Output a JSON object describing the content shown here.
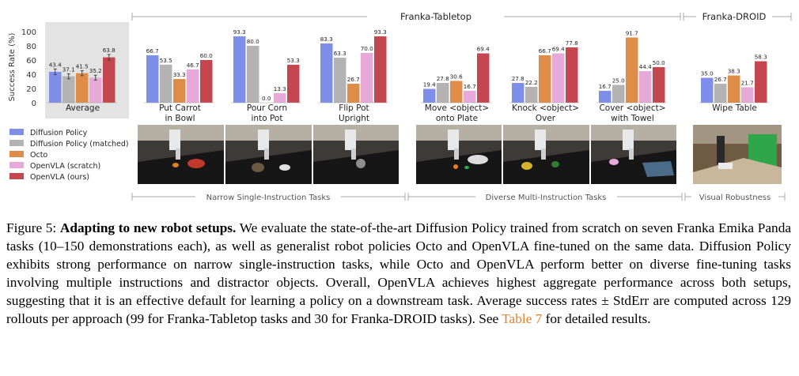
{
  "colors": {
    "Diffusion Policy": "#7f8ee8",
    "Diffusion Policy (matched)": "#b3b3b3",
    "Octo": "#dd8d48",
    "OpenVLA (scratch)": "#e6a9d8",
    "OpenVLA (ours)": "#c4464f"
  },
  "group_labels": {
    "tabletop": "Franka-Tabletop",
    "droid": "Franka-DROID",
    "narrow": "Narrow Single-Instruction Tasks",
    "diverse": "Diverse Multi-Instruction Tasks",
    "visual": "Visual Robustness"
  },
  "chart_data": {
    "type": "bar",
    "ylabel": "Success Rate (%)",
    "ylim": [
      0,
      100
    ],
    "yticks": [
      0,
      20,
      40,
      60,
      80,
      100
    ],
    "series_names": [
      "Diffusion Policy",
      "Diffusion Policy (matched)",
      "Octo",
      "OpenVLA (scratch)",
      "OpenVLA (ours)"
    ],
    "panels": [
      {
        "label": [
          "Average"
        ],
        "values": [
          43.4,
          37.1,
          41.5,
          35.2,
          63.8
        ],
        "errors": [
          4.0,
          3.5,
          3.5,
          3.5,
          4.0
        ]
      },
      {
        "label": [
          "Put Carrot",
          "in Bowl"
        ],
        "values": [
          66.7,
          53.5,
          33.3,
          46.7,
          60.0
        ]
      },
      {
        "label": [
          "Pour Corn",
          "into Pot"
        ],
        "values": [
          93.3,
          80.0,
          0.0,
          13.3,
          53.3
        ]
      },
      {
        "label": [
          "Flip Pot",
          "Upright"
        ],
        "values": [
          83.3,
          63.3,
          26.7,
          70.0,
          93.3
        ]
      },
      {
        "label": [
          "Move <object>",
          "onto Plate"
        ],
        "values": [
          19.4,
          27.8,
          30.6,
          16.7,
          69.4
        ]
      },
      {
        "label": [
          "Knock <object>",
          "Over"
        ],
        "values": [
          27.8,
          22.2,
          66.7,
          69.4,
          77.8
        ]
      },
      {
        "label": [
          "Cover <object>",
          "with Towel"
        ],
        "values": [
          16.7,
          25.0,
          91.7,
          44.4,
          50.0
        ]
      },
      {
        "label": [
          "Wipe Table"
        ],
        "values": [
          35.0,
          26.7,
          38.3,
          21.7,
          58.3
        ]
      }
    ]
  },
  "caption": {
    "prefix": "Figure 5: ",
    "title": "Adapting to new robot setups.",
    "body": " We evaluate the state-of-the-art Diffusion Policy trained from scratch on seven Franka Emika Panda tasks (10–150 demonstrations each), as well as generalist robot policies Octo and OpenVLA fine-tuned on the same data. Diffusion Policy exhibits strong performance on narrow single-instruction tasks, while Octo and OpenVLA perform better on diverse fine-tuning tasks involving multiple instructions and distractor objects. Overall, OpenVLA achieves highest aggregate performance across both setups, suggesting that it is an effective default for learning a policy on a downstream task. Average success rates ± StdErr are computed across 129 rollouts per approach (99 for Franka-Tabletop tasks and 30 for Franka-DROID tasks). See ",
    "ref": "Table 7",
    "suffix": " for detailed results."
  }
}
